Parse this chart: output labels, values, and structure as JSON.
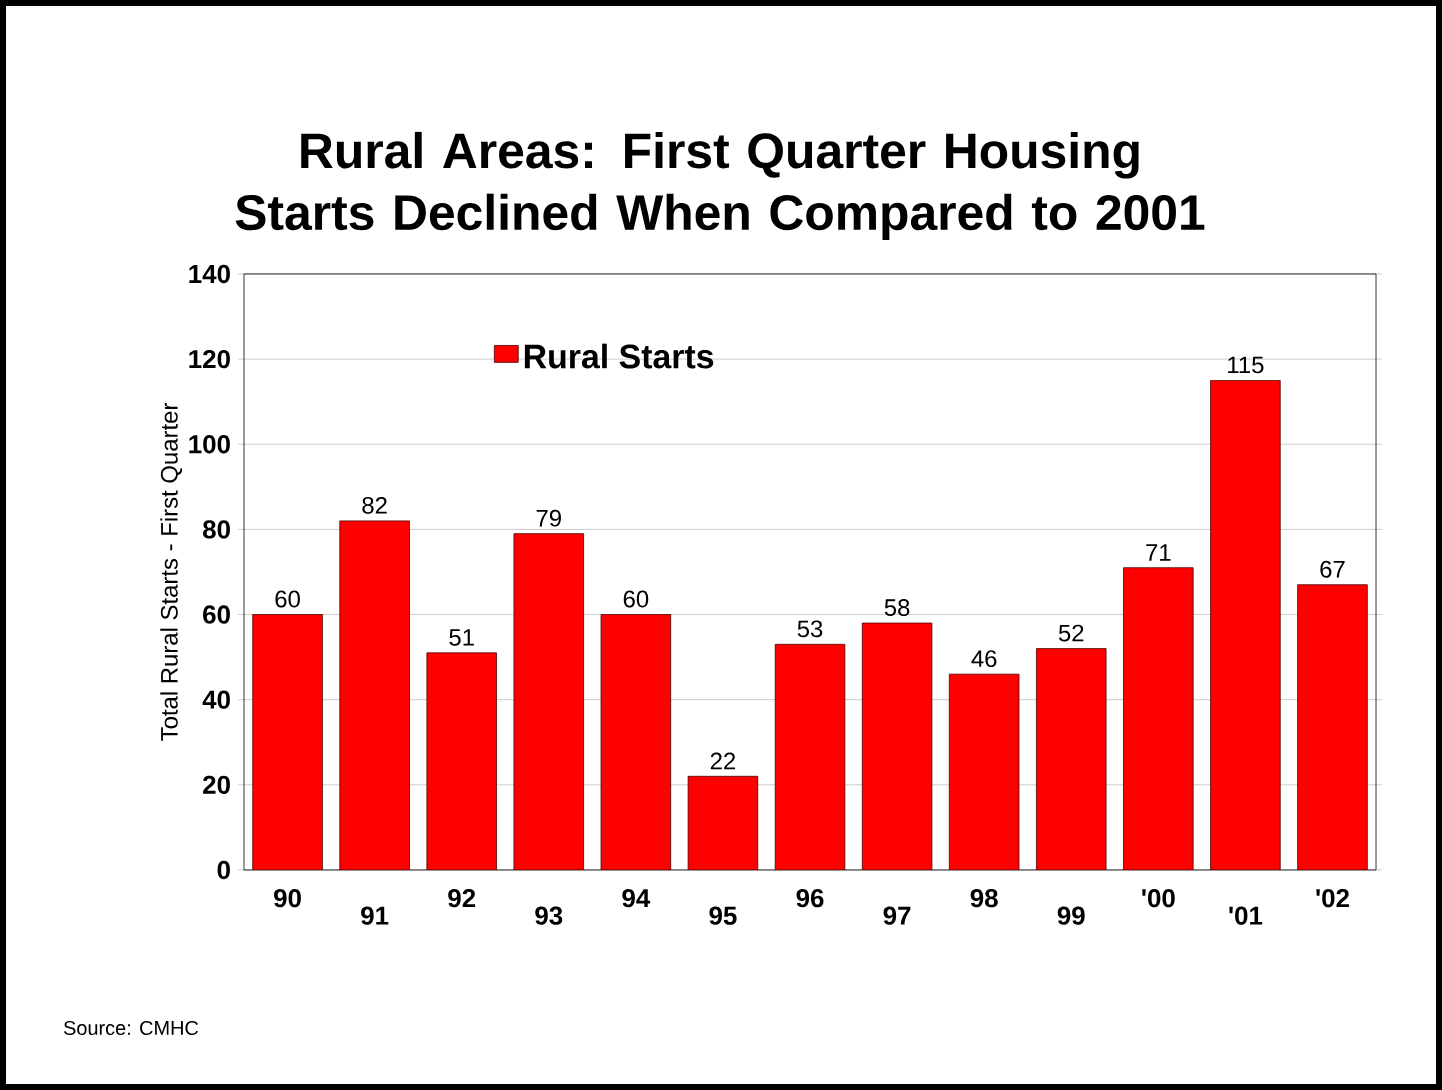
{
  "chart_data": {
    "type": "bar",
    "title": "Rural Areas: First Quarter Housing Starts Declined When Compared to 2001",
    "ylabel": "Total Rural Starts - First Quarter",
    "categories": [
      "90",
      "91",
      "92",
      "93",
      "94",
      "95",
      "96",
      "97",
      "98",
      "99",
      "'00",
      "'01",
      "'02"
    ],
    "series": [
      {
        "name": "Rural Starts",
        "color": "#ff0000",
        "values": [
          60,
          82,
          51,
          79,
          60,
          22,
          53,
          58,
          46,
          52,
          71,
          115,
          67
        ]
      }
    ],
    "ylim": [
      0,
      140
    ],
    "yticks": [
      0,
      20,
      40,
      60,
      80,
      100,
      120,
      140
    ],
    "grid": "y",
    "legend": "top",
    "data_labels": true,
    "annotations": [
      "Source: CMHC"
    ]
  }
}
